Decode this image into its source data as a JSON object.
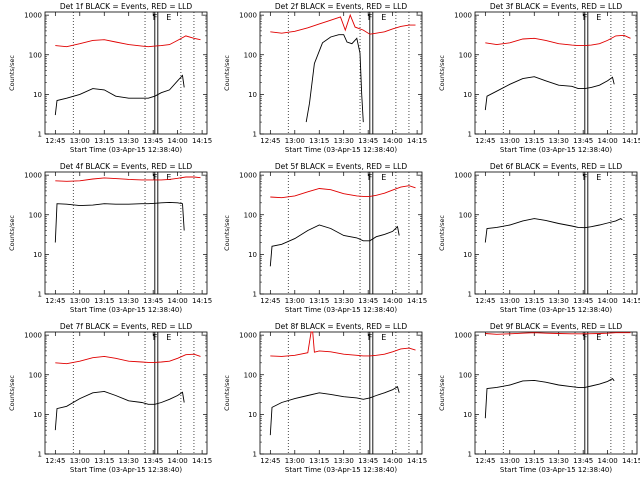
{
  "common": {
    "ylabel": "Counts/sec",
    "xlabel": "Start Time (03-Apr-15 12:38:40)",
    "xticks": [
      "12:45",
      "13:00",
      "13:15",
      "13:30",
      "13:45",
      "14:00",
      "14:15"
    ],
    "yticks": [
      "1",
      "10",
      "100",
      "1000"
    ],
    "marker_labels": [
      "F",
      "E"
    ],
    "colors": {
      "events": "#000000",
      "lld": "#e00000"
    }
  },
  "chart_data": [
    {
      "type": "line",
      "title": "Det 1f BLACK = Events, RED = LLD",
      "xlim": [
        "12:38:40",
        "14:18:00"
      ],
      "ylim": [
        1,
        1200
      ],
      "yscale": "log",
      "grid": false,
      "series": [
        {
          "color": "#e00000",
          "x": [
            "12:45",
            "12:52",
            "13:00",
            "13:08",
            "13:15",
            "13:22",
            "13:30",
            "13:38",
            "13:42",
            "13:46",
            "13:50",
            "13:55",
            "14:00",
            "14:05",
            "14:10",
            "14:14"
          ],
          "values": [
            170,
            160,
            190,
            230,
            240,
            210,
            180,
            165,
            160,
            165,
            170,
            180,
            230,
            300,
            260,
            240
          ]
        },
        {
          "color": "#000000",
          "x": [
            "12:45",
            "12:46",
            "12:52",
            "13:00",
            "13:08",
            "13:15",
            "13:22",
            "13:30",
            "13:38",
            "13:42",
            "13:46",
            "13:50",
            "13:55",
            "14:00",
            "14:03",
            "14:04"
          ],
          "values": [
            3,
            7,
            8,
            10,
            14,
            13,
            9,
            8,
            8,
            8,
            9,
            11,
            13,
            22,
            30,
            15
          ]
        }
      ]
    },
    {
      "type": "line",
      "title": "Det 2f BLACK = Events, RED = LLD",
      "xlim": [
        "12:38:40",
        "14:18:00"
      ],
      "ylim": [
        1,
        1200
      ],
      "yscale": "log",
      "grid": false,
      "series": [
        {
          "color": "#e00000",
          "x": [
            "12:45",
            "12:52",
            "13:00",
            "13:08",
            "13:15",
            "13:20",
            "13:25",
            "13:28",
            "13:31",
            "13:34",
            "13:37",
            "13:42",
            "13:46",
            "13:50",
            "13:55",
            "14:00",
            "14:05",
            "14:10",
            "14:14"
          ],
          "values": [
            380,
            350,
            390,
            480,
            600,
            700,
            820,
            900,
            420,
            1000,
            500,
            420,
            330,
            350,
            380,
            450,
            520,
            560,
            560
          ]
        },
        {
          "color": "#000000",
          "x": [
            "13:07",
            "13:09",
            "13:12",
            "13:17",
            "13:22",
            "13:27",
            "13:30",
            "13:32",
            "13:35",
            "13:38",
            "13:40",
            "13:41",
            "13:42"
          ],
          "values": [
            2,
            6,
            60,
            200,
            280,
            320,
            320,
            210,
            190,
            260,
            110,
            10,
            2
          ]
        }
      ]
    },
    {
      "type": "line",
      "title": "Det 3f BLACK = Events, RED = LLD",
      "xlim": [
        "12:38:40",
        "14:18:00"
      ],
      "ylim": [
        1,
        1200
      ],
      "yscale": "log",
      "grid": false,
      "series": [
        {
          "color": "#e00000",
          "x": [
            "12:45",
            "12:52",
            "13:00",
            "13:08",
            "13:15",
            "13:22",
            "13:30",
            "13:38",
            "13:42",
            "13:46",
            "13:50",
            "13:55",
            "14:00",
            "14:05",
            "14:10",
            "14:14"
          ],
          "values": [
            200,
            180,
            200,
            250,
            260,
            230,
            190,
            175,
            170,
            170,
            175,
            190,
            230,
            300,
            310,
            260
          ]
        },
        {
          "color": "#000000",
          "x": [
            "12:45",
            "12:46",
            "12:52",
            "13:00",
            "13:08",
            "13:15",
            "13:22",
            "13:30",
            "13:38",
            "13:42",
            "13:46",
            "13:50",
            "13:55",
            "14:00",
            "14:03",
            "14:04"
          ],
          "values": [
            4,
            9,
            12,
            18,
            25,
            28,
            22,
            17,
            16,
            14,
            14,
            15,
            17,
            22,
            27,
            18
          ]
        }
      ]
    },
    {
      "type": "line",
      "title": "Det 4f BLACK = Events, RED = LLD",
      "xlim": [
        "12:38:40",
        "14:18:00"
      ],
      "ylim": [
        1,
        1200
      ],
      "yscale": "log",
      "grid": false,
      "series": [
        {
          "color": "#e00000",
          "x": [
            "12:45",
            "12:52",
            "13:00",
            "13:08",
            "13:15",
            "13:22",
            "13:30",
            "13:38",
            "13:42",
            "13:46",
            "13:50",
            "13:55",
            "14:00",
            "14:05",
            "14:10",
            "14:14"
          ],
          "values": [
            720,
            700,
            720,
            800,
            850,
            820,
            780,
            760,
            760,
            760,
            760,
            780,
            830,
            900,
            900,
            860
          ]
        },
        {
          "color": "#000000",
          "x": [
            "12:45",
            "12:46",
            "12:52",
            "13:00",
            "13:08",
            "13:15",
            "13:22",
            "13:30",
            "13:38",
            "13:42",
            "13:46",
            "13:50",
            "13:55",
            "14:00",
            "14:03",
            "14:04"
          ],
          "values": [
            20,
            190,
            185,
            170,
            175,
            190,
            185,
            185,
            190,
            190,
            195,
            200,
            205,
            200,
            190,
            40
          ]
        }
      ]
    },
    {
      "type": "line",
      "title": "Det 5f BLACK = Events, RED = LLD",
      "xlim": [
        "12:38:40",
        "14:18:00"
      ],
      "ylim": [
        1,
        1200
      ],
      "yscale": "log",
      "grid": false,
      "series": [
        {
          "color": "#e00000",
          "x": [
            "12:45",
            "12:52",
            "13:00",
            "13:08",
            "13:15",
            "13:22",
            "13:30",
            "13:38",
            "13:42",
            "13:46",
            "13:50",
            "13:55",
            "14:00",
            "14:05",
            "14:10",
            "14:14"
          ],
          "values": [
            280,
            270,
            300,
            380,
            460,
            430,
            340,
            300,
            290,
            290,
            310,
            350,
            420,
            500,
            540,
            480
          ]
        },
        {
          "color": "#000000",
          "x": [
            "12:45",
            "12:46",
            "12:52",
            "13:00",
            "13:08",
            "13:15",
            "13:22",
            "13:30",
            "13:38",
            "13:42",
            "13:46",
            "13:50",
            "13:55",
            "14:00",
            "14:03",
            "14:04"
          ],
          "values": [
            5,
            16,
            18,
            25,
            40,
            55,
            45,
            30,
            26,
            22,
            22,
            28,
            32,
            38,
            50,
            30
          ]
        }
      ]
    },
    {
      "type": "line",
      "title": "Det 6f BLACK = Events, RED = LLD",
      "xlim": [
        "12:38:40",
        "14:18:00"
      ],
      "ylim": [
        1,
        1200
      ],
      "yscale": "log",
      "grid": false,
      "series": [
        {
          "color": "#000000",
          "x": [
            "12:45",
            "12:46",
            "12:52",
            "13:00",
            "13:08",
            "13:15",
            "13:22",
            "13:30",
            "13:38",
            "13:42",
            "13:46",
            "13:50",
            "13:55",
            "14:00",
            "14:05",
            "14:08",
            "14:09"
          ],
          "values": [
            20,
            45,
            48,
            55,
            70,
            80,
            72,
            60,
            52,
            48,
            47,
            50,
            55,
            62,
            70,
            80,
            75
          ]
        }
      ]
    },
    {
      "type": "line",
      "title": "Det 7f BLACK = Events, RED = LLD",
      "xlim": [
        "12:38:40",
        "14:18:00"
      ],
      "ylim": [
        1,
        1200
      ],
      "yscale": "log",
      "grid": false,
      "series": [
        {
          "color": "#e00000",
          "x": [
            "12:45",
            "12:52",
            "13:00",
            "13:08",
            "13:15",
            "13:22",
            "13:30",
            "13:38",
            "13:42",
            "13:46",
            "13:50",
            "13:55",
            "14:00",
            "14:05",
            "14:10",
            "14:14"
          ],
          "values": [
            200,
            190,
            220,
            270,
            290,
            260,
            220,
            210,
            205,
            205,
            210,
            220,
            260,
            320,
            330,
            290
          ]
        },
        {
          "color": "#000000",
          "x": [
            "12:45",
            "12:46",
            "12:52",
            "13:00",
            "13:08",
            "13:15",
            "13:22",
            "13:30",
            "13:38",
            "13:42",
            "13:46",
            "13:50",
            "13:55",
            "14:00",
            "14:03",
            "14:04"
          ],
          "values": [
            4,
            14,
            16,
            25,
            35,
            38,
            30,
            22,
            20,
            18,
            18,
            20,
            24,
            30,
            36,
            20
          ]
        }
      ]
    },
    {
      "type": "line",
      "title": "Det 8f BLACK = Events, RED = LLD",
      "xlim": [
        "12:38:40",
        "14:18:00"
      ],
      "ylim": [
        1,
        1200
      ],
      "yscale": "log",
      "grid": false,
      "series": [
        {
          "color": "#e00000",
          "x": [
            "12:45",
            "12:52",
            "13:00",
            "13:08",
            "13:10",
            "13:11",
            "13:12",
            "13:15",
            "13:22",
            "13:30",
            "13:38",
            "13:42",
            "13:46",
            "13:50",
            "13:55",
            "14:00",
            "14:05",
            "14:10",
            "14:14"
          ],
          "values": [
            300,
            290,
            310,
            360,
            1200,
            1200,
            370,
            400,
            380,
            330,
            310,
            300,
            300,
            310,
            330,
            380,
            450,
            470,
            420
          ]
        },
        {
          "color": "#000000",
          "x": [
            "12:45",
            "12:46",
            "12:52",
            "13:00",
            "13:08",
            "13:15",
            "13:22",
            "13:30",
            "13:38",
            "13:42",
            "13:46",
            "13:50",
            "13:55",
            "14:00",
            "14:03",
            "14:04"
          ],
          "values": [
            3,
            15,
            20,
            25,
            30,
            35,
            32,
            28,
            26,
            24,
            26,
            30,
            35,
            42,
            50,
            35
          ]
        }
      ]
    },
    {
      "type": "line",
      "title": "Det 9f BLACK = Events, RED = LLD",
      "xlim": [
        "12:38:40",
        "14:18:00"
      ],
      "ylim": [
        1,
        1200
      ],
      "yscale": "log",
      "grid": false,
      "series": [
        {
          "color": "#e00000",
          "x": [
            "12:45",
            "12:52",
            "13:00",
            "13:08",
            "13:15",
            "13:22",
            "13:30",
            "13:38",
            "13:42",
            "13:46",
            "13:50",
            "13:55",
            "14:00",
            "14:05",
            "14:10",
            "14:14"
          ],
          "values": [
            1100,
            1050,
            1080,
            1120,
            1150,
            1120,
            1100,
            1080,
            1080,
            1080,
            1090,
            1100,
            1120,
            1150,
            1150,
            1150
          ]
        },
        {
          "color": "#000000",
          "x": [
            "12:45",
            "12:46",
            "12:52",
            "13:00",
            "13:08",
            "13:15",
            "13:22",
            "13:30",
            "13:38",
            "13:42",
            "13:46",
            "13:50",
            "13:55",
            "14:00",
            "14:03",
            "14:04"
          ],
          "values": [
            8,
            45,
            48,
            55,
            70,
            72,
            65,
            55,
            50,
            48,
            48,
            52,
            58,
            68,
            80,
            70
          ]
        }
      ]
    }
  ]
}
